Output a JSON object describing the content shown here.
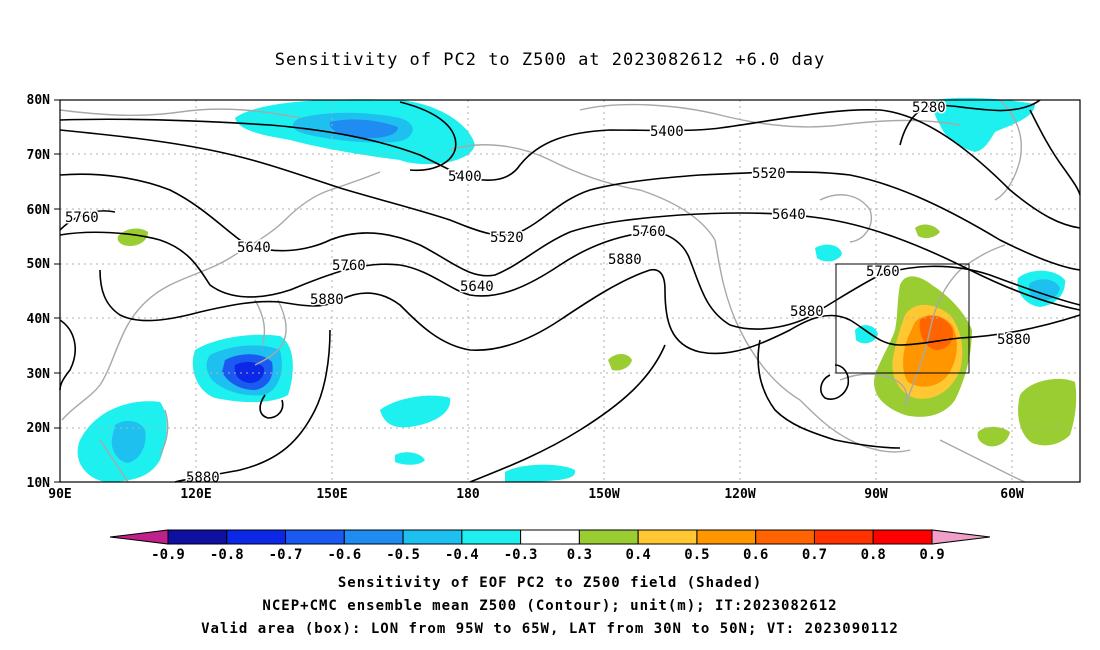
{
  "title": "Sensitivity of PC2 to Z500 at 2023082612 +6.0 day",
  "latitude_labels": [
    "80N",
    "70N",
    "60N",
    "50N",
    "40N",
    "30N",
    "20N",
    "10N"
  ],
  "longitude_labels": [
    "90E",
    "120E",
    "150E",
    "180",
    "150W",
    "120W",
    "90W",
    "60W"
  ],
  "contour_labels": [
    "5280",
    "5400",
    "5400",
    "5520",
    "5520",
    "5640",
    "5640",
    "5640",
    "5760",
    "5760",
    "5760",
    "5760",
    "5880",
    "5880",
    "5880",
    "5880",
    "5880"
  ],
  "valid_box": {
    "lon_from": "95W",
    "lon_to": "65W",
    "lat_from": "30N",
    "lat_to": "50N"
  },
  "colorbar": {
    "ticks": [
      "-0.9",
      "-0.8",
      "-0.7",
      "-0.6",
      "-0.5",
      "-0.4",
      "-0.3",
      "0.3",
      "0.4",
      "0.5",
      "0.6",
      "0.7",
      "0.8",
      "0.9"
    ],
    "colors": [
      "#1010a0",
      "#0a28e6",
      "#1a5af0",
      "#1e8cf0",
      "#1ec0f0",
      "#1ef0f0",
      "#ffffff",
      "#9acd32",
      "#ffc832",
      "#ff9600",
      "#ff6400",
      "#ff3200",
      "#ff0000"
    ],
    "left_arrow_color": "#c0208a",
    "right_arrow_color": "#f0a0c8"
  },
  "captions": {
    "line1": "Sensitivity of EOF PC2 to Z500 field (Shaded)",
    "line2": "NCEP+CMC ensemble mean Z500 (Contour); unit(m); IT:2023082612",
    "line3": "Valid area (box): LON from 95W to 65W, LAT from 30N to 50N; VT: 2023090112"
  }
}
